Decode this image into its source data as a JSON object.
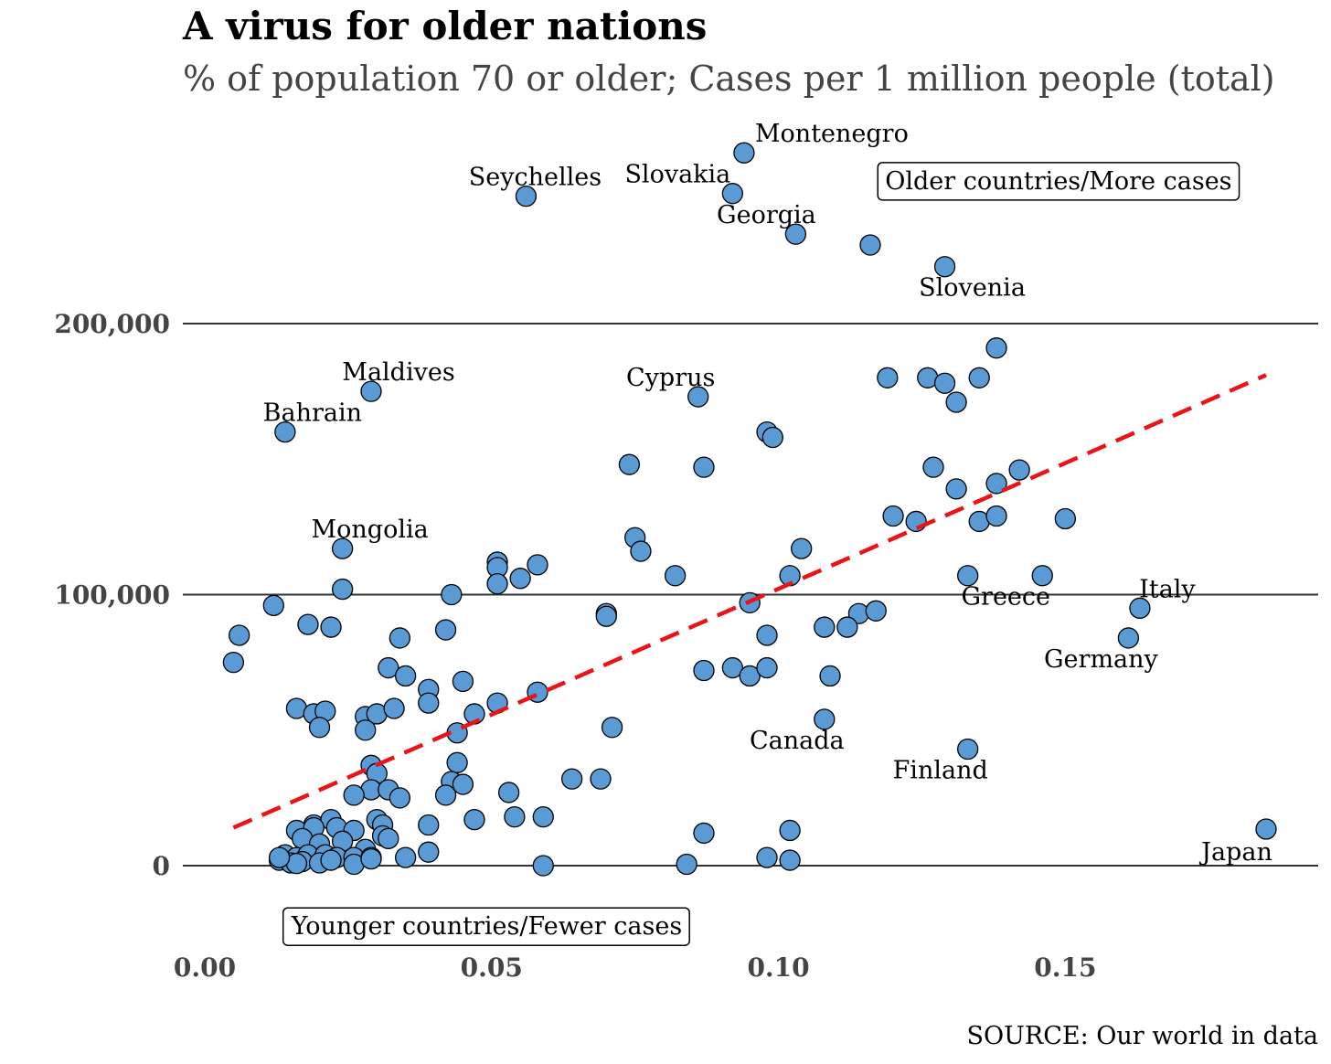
{
  "title": "A virus for older nations",
  "subtitle": "% of population 70 or older; Cases per 1 million people (total)",
  "source": "SOURCE: Our world in data",
  "colors": {
    "point": "#5b9bd5",
    "point_edge": "#000000",
    "trend": "#e8141a",
    "grid": "#333333"
  },
  "chart_data": {
    "type": "scatter",
    "title": "A virus for older nations",
    "subtitle": "% of population 70 or older; Cases per 1 million people (total)",
    "xlabel": "",
    "ylabel": "",
    "xlim": [
      -0.004,
      0.19
    ],
    "ylim": [
      -32000,
      272000
    ],
    "xticks": [
      0.0,
      0.05,
      0.1,
      0.15
    ],
    "xtick_labels": [
      "0.00",
      "0.05",
      "0.10",
      "0.15"
    ],
    "yticks": [
      0,
      100000,
      200000
    ],
    "ytick_labels": [
      "0",
      "100,000",
      "200,000"
    ],
    "grid": "horizontal",
    "annotation_boxes": [
      {
        "text": "Older countries/More cases",
        "x": 0.117,
        "y": 253000
      },
      {
        "text": "Younger countries/Fewer cases",
        "x": 0.0135,
        "y": -22000
      }
    ],
    "trend_line": {
      "style": "dashed",
      "x": [
        0.005,
        0.185
      ],
      "y": [
        14000,
        181000
      ]
    },
    "labeled_points": [
      {
        "name": "Montenegro",
        "x": 0.094,
        "y": 263000
      },
      {
        "name": "Seychelles",
        "x": 0.056,
        "y": 247000
      },
      {
        "name": "Slovakia",
        "x": 0.092,
        "y": 248000
      },
      {
        "name": "Georgia",
        "x": 0.103,
        "y": 233000
      },
      {
        "name": "Slovenia",
        "x": 0.129,
        "y": 221000
      },
      {
        "name": "Maldives",
        "x": 0.029,
        "y": 175000
      },
      {
        "name": "Cyprus",
        "x": 0.086,
        "y": 173000
      },
      {
        "name": "Bahrain",
        "x": 0.014,
        "y": 160000
      },
      {
        "name": "Mongolia",
        "x": 0.024,
        "y": 117000
      },
      {
        "name": "Greece",
        "x": 0.146,
        "y": 107000
      },
      {
        "name": "Italy",
        "x": 0.163,
        "y": 95000
      },
      {
        "name": "Germany",
        "x": 0.161,
        "y": 84000
      },
      {
        "name": "Canada",
        "x": 0.108,
        "y": 54000
      },
      {
        "name": "Finland",
        "x": 0.133,
        "y": 43000
      },
      {
        "name": "Japan",
        "x": 0.185,
        "y": 13500
      }
    ],
    "points": [
      [
        0.116,
        229000
      ],
      [
        0.138,
        191000
      ],
      [
        0.119,
        180000
      ],
      [
        0.126,
        180000
      ],
      [
        0.129,
        178000
      ],
      [
        0.135,
        180000
      ],
      [
        0.131,
        171000
      ],
      [
        0.098,
        160000
      ],
      [
        0.099,
        158000
      ],
      [
        0.074,
        148000
      ],
      [
        0.087,
        147000
      ],
      [
        0.127,
        147000
      ],
      [
        0.131,
        139000
      ],
      [
        0.138,
        141000
      ],
      [
        0.142,
        146000
      ],
      [
        0.12,
        129000
      ],
      [
        0.124,
        127000
      ],
      [
        0.135,
        127000
      ],
      [
        0.138,
        129000
      ],
      [
        0.15,
        128000
      ],
      [
        0.075,
        121000
      ],
      [
        0.076,
        116000
      ],
      [
        0.104,
        117000
      ],
      [
        0.051,
        112000
      ],
      [
        0.051,
        110000
      ],
      [
        0.058,
        111000
      ],
      [
        0.055,
        106000
      ],
      [
        0.051,
        104000
      ],
      [
        0.082,
        107000
      ],
      [
        0.102,
        107000
      ],
      [
        0.133,
        107000
      ],
      [
        0.024,
        102000
      ],
      [
        0.043,
        100000
      ],
      [
        0.095,
        97000
      ],
      [
        0.012,
        96000
      ],
      [
        0.07,
        93000
      ],
      [
        0.07,
        92000
      ],
      [
        0.114,
        93000
      ],
      [
        0.117,
        94000
      ],
      [
        0.006,
        85000
      ],
      [
        0.018,
        89000
      ],
      [
        0.022,
        88000
      ],
      [
        0.042,
        87000
      ],
      [
        0.108,
        88000
      ],
      [
        0.112,
        88000
      ],
      [
        0.098,
        85000
      ],
      [
        0.005,
        75000
      ],
      [
        0.034,
        84000
      ],
      [
        0.032,
        73000
      ],
      [
        0.035,
        70000
      ],
      [
        0.045,
        68000
      ],
      [
        0.087,
        72000
      ],
      [
        0.092,
        73000
      ],
      [
        0.095,
        70000
      ],
      [
        0.098,
        73000
      ],
      [
        0.109,
        70000
      ],
      [
        0.039,
        65000
      ],
      [
        0.039,
        60000
      ],
      [
        0.058,
        64000
      ],
      [
        0.016,
        58000
      ],
      [
        0.019,
        56000
      ],
      [
        0.021,
        57000
      ],
      [
        0.028,
        55000
      ],
      [
        0.03,
        56000
      ],
      [
        0.033,
        58000
      ],
      [
        0.047,
        56000
      ],
      [
        0.051,
        60000
      ],
      [
        0.02,
        51000
      ],
      [
        0.028,
        50000
      ],
      [
        0.044,
        49000
      ],
      [
        0.071,
        51000
      ],
      [
        0.029,
        37000
      ],
      [
        0.03,
        34000
      ],
      [
        0.044,
        38000
      ],
      [
        0.043,
        31000
      ],
      [
        0.045,
        30000
      ],
      [
        0.064,
        32000
      ],
      [
        0.069,
        32000
      ],
      [
        0.029,
        28000
      ],
      [
        0.032,
        28000
      ],
      [
        0.026,
        26000
      ],
      [
        0.034,
        25000
      ],
      [
        0.042,
        26000
      ],
      [
        0.053,
        27000
      ],
      [
        0.054,
        18000
      ],
      [
        0.059,
        18000
      ],
      [
        0.047,
        17000
      ],
      [
        0.039,
        15000
      ],
      [
        0.019,
        15000
      ],
      [
        0.022,
        17000
      ],
      [
        0.03,
        17000
      ],
      [
        0.031,
        15000
      ],
      [
        0.016,
        13000
      ],
      [
        0.019,
        14000
      ],
      [
        0.023,
        14000
      ],
      [
        0.026,
        13000
      ],
      [
        0.031,
        11000
      ],
      [
        0.032,
        10000
      ],
      [
        0.087,
        12000
      ],
      [
        0.102,
        13000
      ],
      [
        0.017,
        10000
      ],
      [
        0.02,
        8000
      ],
      [
        0.024,
        9000
      ],
      [
        0.028,
        6000
      ],
      [
        0.014,
        4000
      ],
      [
        0.016,
        3000
      ],
      [
        0.018,
        4000
      ],
      [
        0.021,
        4000
      ],
      [
        0.023,
        3000
      ],
      [
        0.026,
        3000
      ],
      [
        0.029,
        3000
      ],
      [
        0.035,
        3000
      ],
      [
        0.039,
        5000
      ],
      [
        0.013,
        2000
      ],
      [
        0.015,
        1000
      ],
      [
        0.017,
        1500
      ],
      [
        0.02,
        1000
      ],
      [
        0.022,
        2000
      ],
      [
        0.026,
        500
      ],
      [
        0.016,
        800
      ],
      [
        0.059,
        0
      ],
      [
        0.084,
        500
      ],
      [
        0.098,
        3000
      ],
      [
        0.102,
        2000
      ],
      [
        0.013,
        3000
      ],
      [
        0.029,
        2500
      ]
    ]
  }
}
